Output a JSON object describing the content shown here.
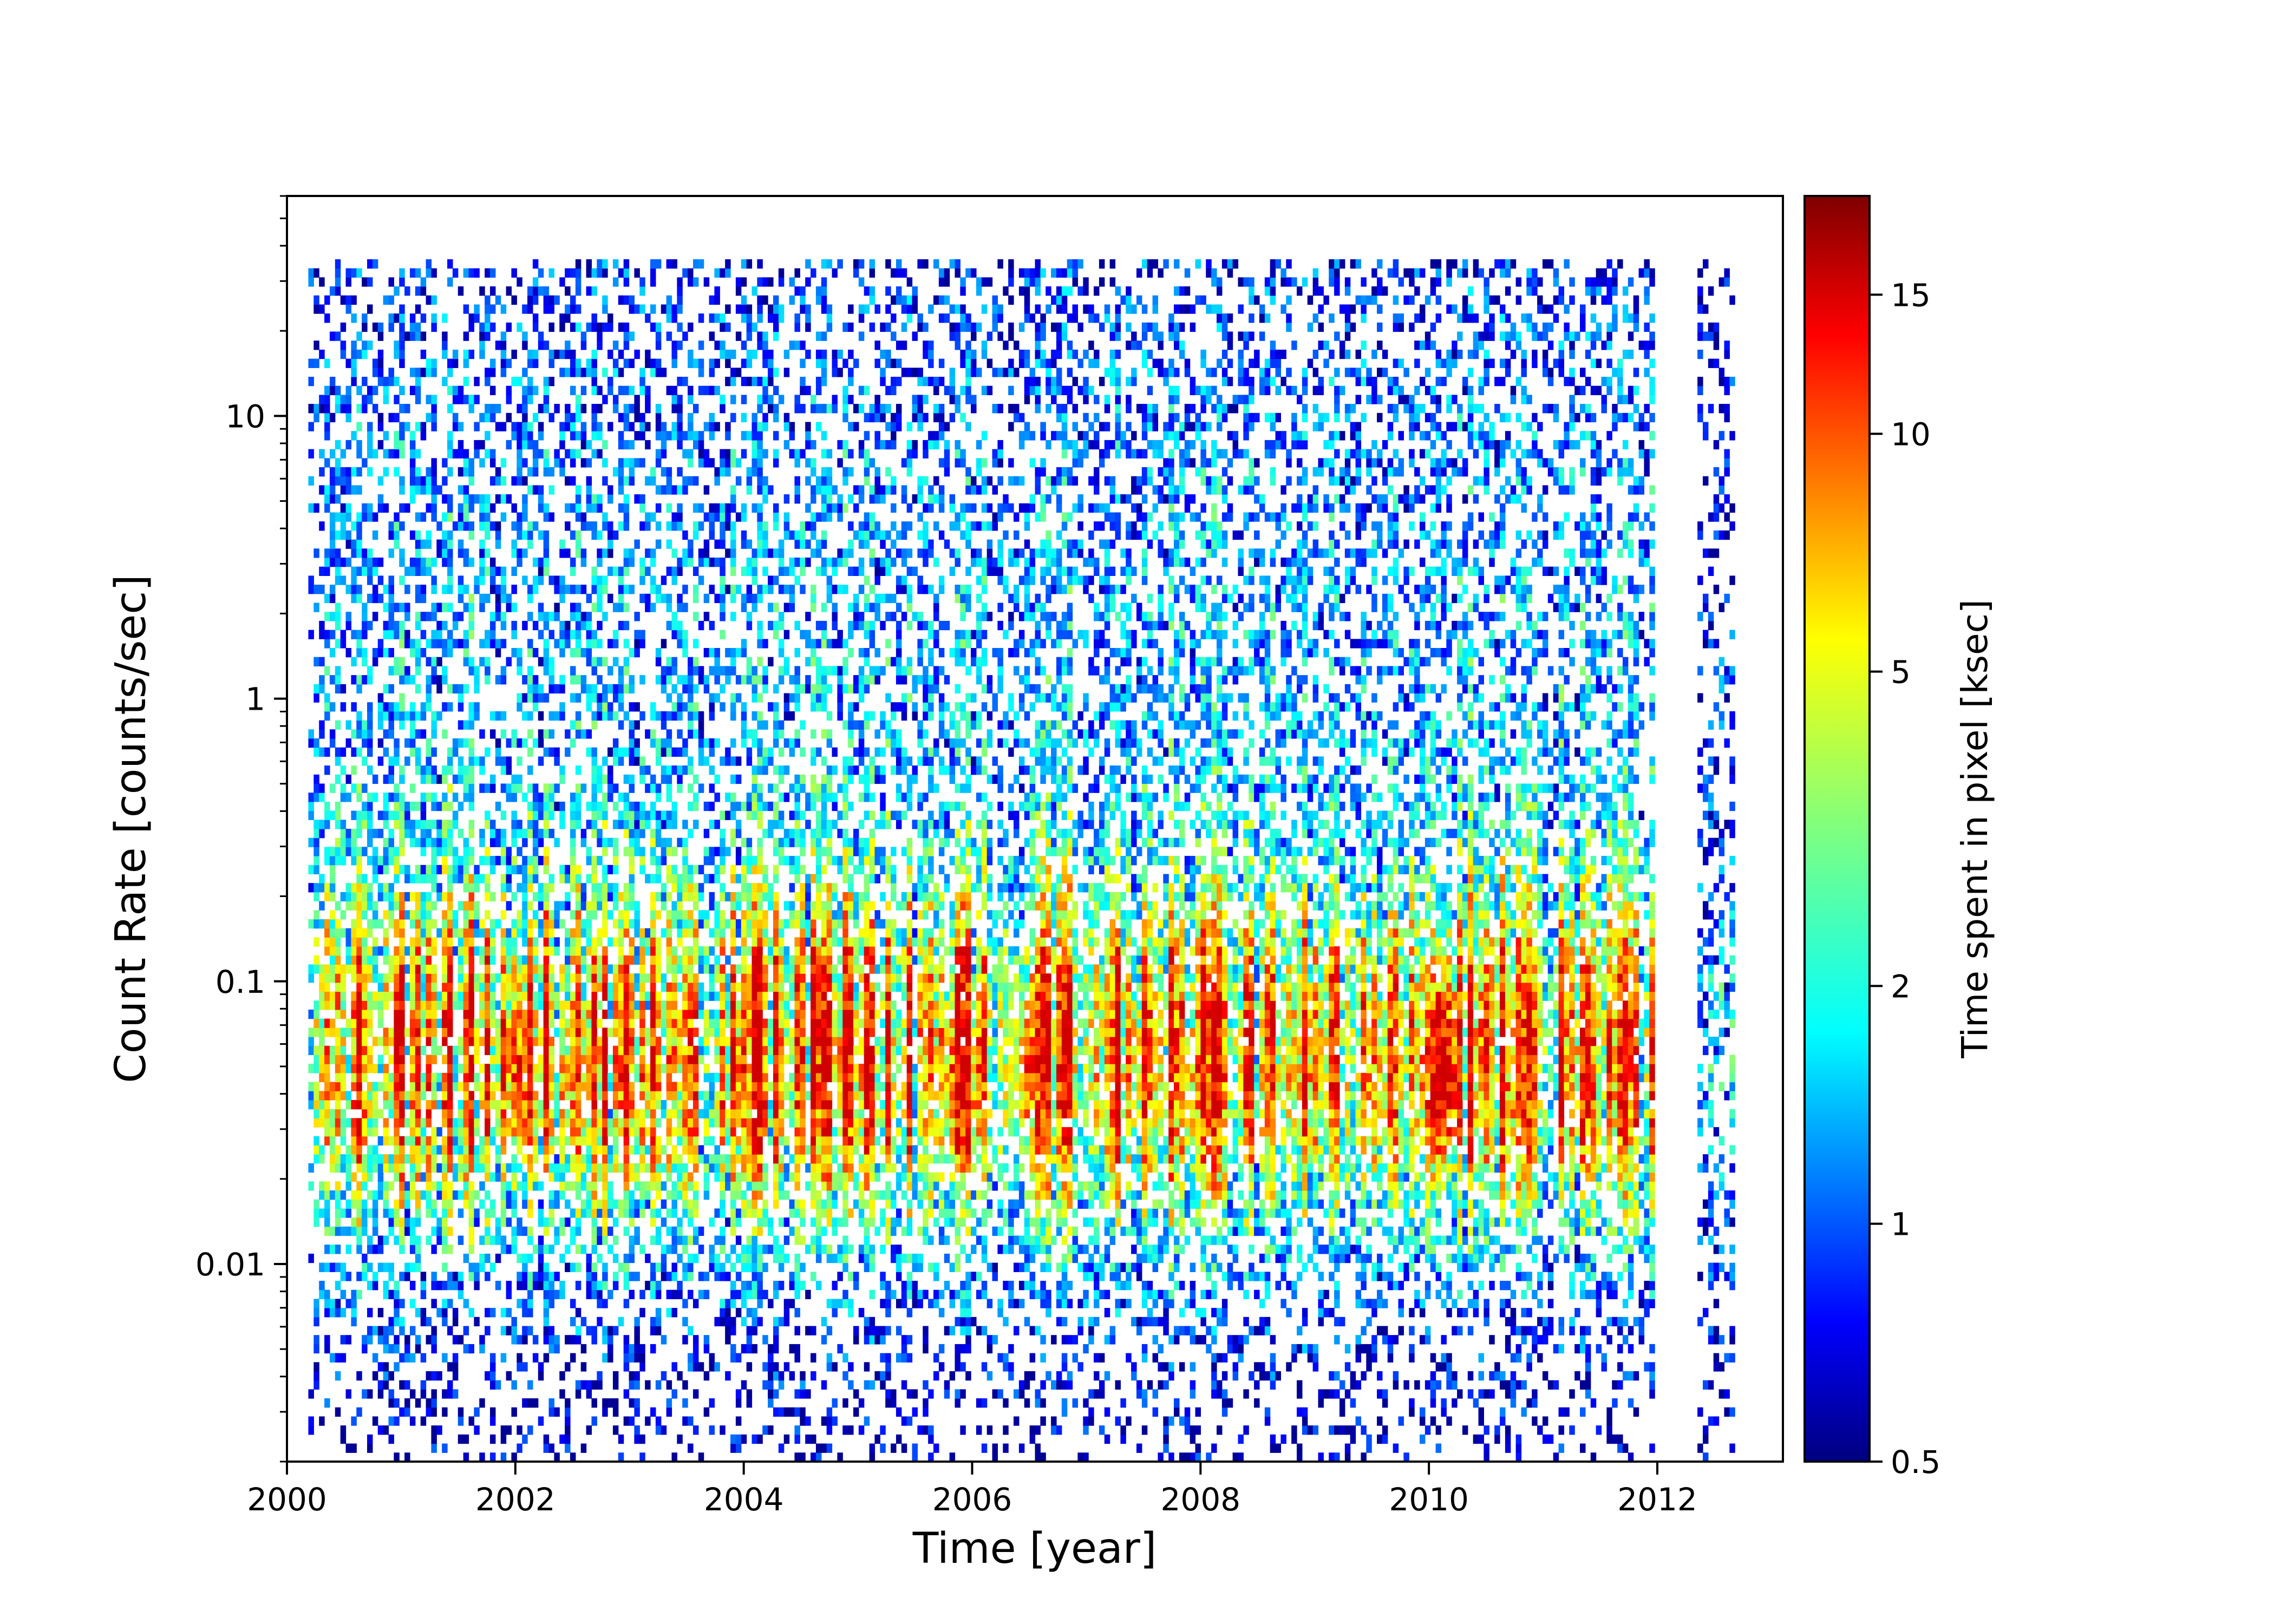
{
  "chart_data": {
    "type": "heatmap",
    "xlabel": "Time [year]",
    "ylabel": "Count Rate [counts/sec]",
    "xlim": [
      2000,
      2013.1
    ],
    "ylim": [
      0.002,
      60
    ],
    "yscale": "log",
    "x_ticks": [
      2000,
      2002,
      2004,
      2006,
      2008,
      2010,
      2012
    ],
    "x_tick_labels": [
      "2000",
      "2002",
      "2004",
      "2006",
      "2008",
      "2010",
      "2012"
    ],
    "y_ticks": [
      0.01,
      0.1,
      1,
      10
    ],
    "y_tick_labels": [
      "0.01",
      "0.1",
      "1",
      "10"
    ],
    "colorbar": {
      "label": "Time spent in pixel [ksec]",
      "scale": "log",
      "range": [
        0.5,
        20
      ],
      "colormap": "jet",
      "ticks": [
        0.5,
        1,
        2,
        5,
        10,
        15
      ],
      "tick_labels": [
        "0.5",
        "1",
        "2",
        "5",
        "10",
        "15"
      ]
    },
    "data_extent": {
      "observed_periods": [
        [
          2000.2,
          2012.0
        ],
        [
          2012.35,
          2012.7
        ]
      ],
      "rate_range": [
        0.002,
        35
      ]
    },
    "density_peak_rate": 0.05,
    "peak_clusters": [
      {
        "x": 2002.05,
        "y": 0.05,
        "value": 13
      },
      {
        "x": 2002.55,
        "y": 0.045,
        "value": 11
      },
      {
        "x": 2003.05,
        "y": 0.04,
        "value": 10
      },
      {
        "x": 2004.0,
        "y": 0.045,
        "value": 12
      },
      {
        "x": 2004.9,
        "y": 0.05,
        "value": 11
      },
      {
        "x": 2005.9,
        "y": 0.045,
        "value": 13
      },
      {
        "x": 2006.5,
        "y": 0.05,
        "value": 12
      },
      {
        "x": 2007.4,
        "y": 0.05,
        "value": 10
      },
      {
        "x": 2008.0,
        "y": 0.045,
        "value": 11
      },
      {
        "x": 2009.0,
        "y": 0.05,
        "value": 11
      },
      {
        "x": 2009.5,
        "y": 0.05,
        "value": 11
      },
      {
        "x": 2010.1,
        "y": 0.05,
        "value": 16
      },
      {
        "x": 2010.8,
        "y": 0.045,
        "value": 12
      },
      {
        "x": 2011.4,
        "y": 0.06,
        "value": 11
      }
    ]
  }
}
